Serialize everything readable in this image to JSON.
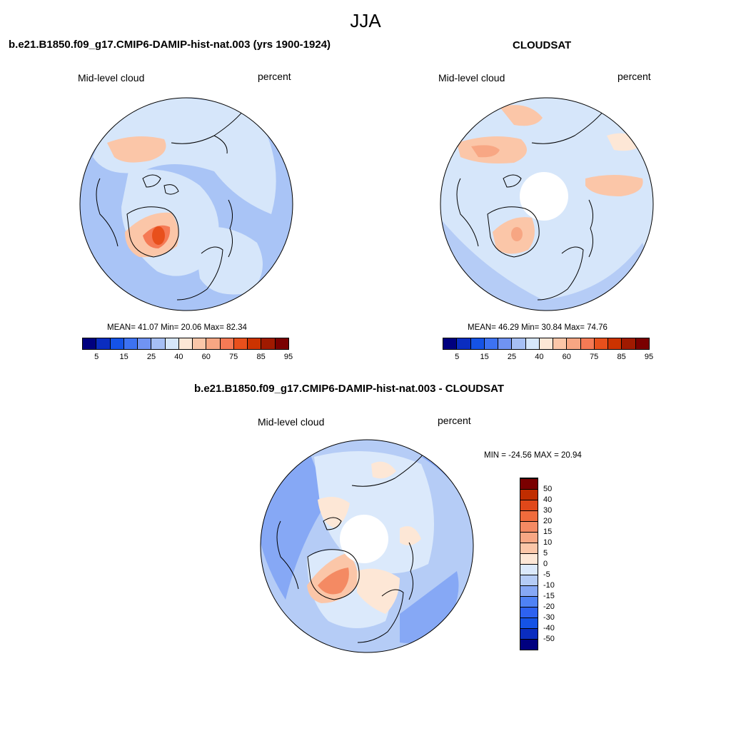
{
  "figure": {
    "title": "JJA"
  },
  "panels": [
    {
      "case_title": "b.e21.B1850.f09_g17.CMIP6-DAMIP-hist-nat.003 (yrs 1900-1924)",
      "left_label": "Mid-level cloud",
      "right_label": "percent",
      "stats": "MEAN=  41.07  Min=  20.06  Max=  82.34",
      "colorbar_labels": [
        "5",
        "15",
        "25",
        "40",
        "60",
        "75",
        "85",
        "95"
      ]
    },
    {
      "case_title": "CLOUDSAT",
      "left_label": "Mid-level cloud",
      "right_label": "percent",
      "stats": "MEAN=  46.29  Min=  30.84  Max=  74.76",
      "colorbar_labels": [
        "5",
        "15",
        "25",
        "40",
        "60",
        "75",
        "85",
        "95"
      ]
    },
    {
      "case_title": "b.e21.B1850.f09_g17.CMIP6-DAMIP-hist-nat.003 - CLOUDSAT",
      "left_label": "Mid-level cloud",
      "right_label": "percent",
      "stats": "MIN = -24.56 MAX =  20.94",
      "colorbar_labels": [
        "50",
        "40",
        "30",
        "20",
        "15",
        "10",
        "5",
        "0",
        "-5",
        "-10",
        "-15",
        "-20",
        "-30",
        "-40",
        "-50"
      ]
    }
  ],
  "colors": {
    "abs_scale": [
      "#00007f",
      "#0a2dc0",
      "#1553e6",
      "#3d72f2",
      "#7093f2",
      "#a6bff5",
      "#d6e6fa",
      "#fde7d6",
      "#fbc6a8",
      "#f7a683",
      "#f57a55",
      "#e8501c",
      "#cc3300",
      "#a01a00",
      "#7a0000"
    ],
    "diff_scale": [
      "#00007f",
      "#0a2dc0",
      "#1553e6",
      "#2e62f0",
      "#4f82f5",
      "#86a8f5",
      "#b5ccf6",
      "#dbe9fb",
      "#fde7d6",
      "#fbc6a8",
      "#f8a784",
      "#f48a63",
      "#f06b3c",
      "#e0481a",
      "#c02d00",
      "#7a0000"
    ],
    "background_abs_model": "#a9c4f6",
    "background_abs_obs": "#d6e6fa",
    "background_diff": "#b5ccf6"
  }
}
